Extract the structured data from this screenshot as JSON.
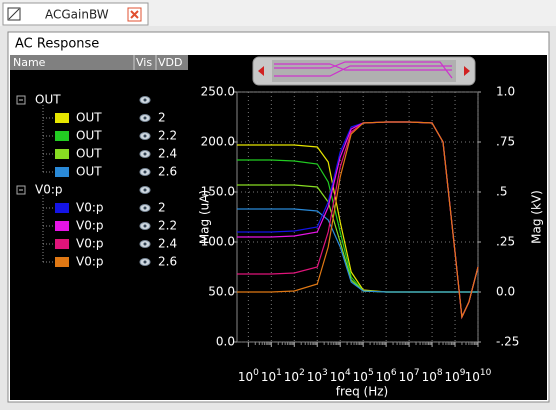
{
  "window": {
    "tab_title": "ACGainBW",
    "panel_title": "AC Response"
  },
  "tree": {
    "headers": [
      "Name",
      "Vis",
      "VDD"
    ],
    "groups": [
      "OUT",
      "V0:p"
    ]
  },
  "chart_data": {
    "type": "line",
    "x_label": "freq (Hz)",
    "y_label": "Mag (uA)",
    "y2_label": "Mag (kV)",
    "xscale": "log",
    "grid": true,
    "xlim": [
      0.32,
      10000000000
    ],
    "xticks": [
      {
        "value": 1,
        "label": "10",
        "exponent": "0"
      },
      {
        "value": 10,
        "label": "10",
        "exponent": "1"
      },
      {
        "value": 100,
        "label": "10",
        "exponent": "2"
      },
      {
        "value": 1000,
        "label": "10",
        "exponent": "3"
      },
      {
        "value": 10000,
        "label": "10",
        "exponent": "4"
      },
      {
        "value": 100000,
        "label": "10",
        "exponent": "5"
      },
      {
        "value": 1000000,
        "label": "10",
        "exponent": "6"
      },
      {
        "value": 10000000,
        "label": "10",
        "exponent": "7"
      },
      {
        "value": 100000000,
        "label": "10",
        "exponent": "8"
      },
      {
        "value": 1000000000,
        "label": "10",
        "exponent": "9"
      },
      {
        "value": 10000000000,
        "label": "10",
        "exponent": "10"
      }
    ],
    "ylim": [
      0,
      250
    ],
    "yticks": [
      {
        "value": 0,
        "label": "0.0"
      },
      {
        "value": 50,
        "label": "50.0"
      },
      {
        "value": 100,
        "label": "100.0"
      },
      {
        "value": 150,
        "label": "150.0"
      },
      {
        "value": 200,
        "label": "200.0"
      },
      {
        "value": 250,
        "label": "250.0"
      }
    ],
    "y2lim": [
      -0.25,
      1.0
    ],
    "y2ticks": [
      {
        "value": -0.25,
        "label": "-.25"
      },
      {
        "value": 0,
        "label": "0.0"
      },
      {
        "value": 0.25,
        "label": ".25"
      },
      {
        "value": 0.5,
        "label": ".5"
      },
      {
        "value": 0.75,
        "label": ".75"
      },
      {
        "value": 1.0,
        "label": "1.0"
      }
    ],
    "x": [
      0.32,
      1,
      10,
      100,
      1000,
      3000,
      10000,
      30000,
      100000,
      1000000,
      10000000,
      100000000,
      300000000,
      1000000000,
      2000000000,
      4000000000,
      10000000000
    ],
    "series": [
      {
        "name": "OUT",
        "vdd": "2",
        "group": 0,
        "color": "#e6e600",
        "values": [
          197,
          197,
          197,
          197,
          195,
          180,
          120,
          70,
          52,
          50,
          50,
          50,
          50,
          50,
          50,
          50,
          50
        ]
      },
      {
        "name": "OUT",
        "vdd": "2.2",
        "group": 0,
        "color": "#22cc22",
        "values": [
          182,
          182,
          182,
          181,
          178,
          160,
          110,
          65,
          51,
          50,
          50,
          50,
          50,
          50,
          50,
          50,
          50
        ]
      },
      {
        "name": "OUT",
        "vdd": "2.4",
        "group": 0,
        "color": "#88dd22",
        "values": [
          157,
          157,
          157,
          157,
          155,
          140,
          100,
          62,
          51,
          50,
          50,
          50,
          50,
          50,
          50,
          50,
          50
        ]
      },
      {
        "name": "OUT",
        "vdd": "2.6",
        "group": 0,
        "color": "#2a8ad8",
        "values": [
          133,
          133,
          133,
          133,
          131,
          122,
          95,
          60,
          51,
          50,
          50,
          50,
          50,
          50,
          50,
          50,
          50
        ]
      },
      {
        "name": "V0:p",
        "vdd": "2",
        "group": 1,
        "color": "#1414e6",
        "values": [
          110,
          110,
          110,
          111,
          115,
          140,
          190,
          215,
          219,
          220,
          220,
          219,
          200,
          90,
          25,
          40,
          75
        ]
      },
      {
        "name": "V0:p",
        "vdd": "2.2",
        "group": 1,
        "color": "#e614e6",
        "values": [
          105,
          105,
          105,
          106,
          110,
          135,
          185,
          213,
          219,
          220,
          220,
          219,
          200,
          90,
          25,
          40,
          75
        ]
      },
      {
        "name": "V0:p",
        "vdd": "2.4",
        "group": 1,
        "color": "#e0147a",
        "values": [
          68,
          68,
          68,
          69,
          75,
          110,
          175,
          210,
          219,
          220,
          220,
          219,
          200,
          90,
          25,
          40,
          75
        ]
      },
      {
        "name": "V0:p",
        "vdd": "2.6",
        "group": 1,
        "color": "#e07814",
        "values": [
          50,
          50,
          50,
          51,
          58,
          95,
          165,
          208,
          219,
          220,
          220,
          219,
          200,
          90,
          25,
          40,
          75
        ]
      }
    ]
  }
}
